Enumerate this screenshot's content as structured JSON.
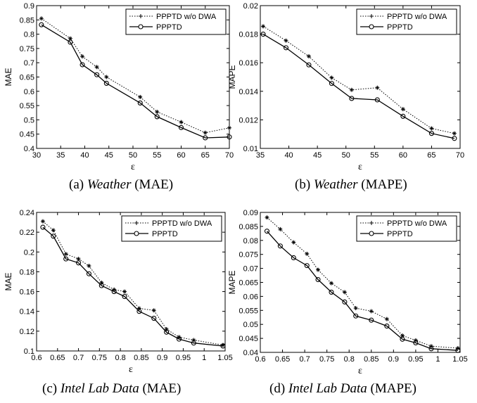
{
  "captions": [
    {
      "tag": "(a)",
      "dataset": "Weather",
      "metric": "(MAE)"
    },
    {
      "tag": "(b)",
      "dataset": "Weather",
      "metric": "(MAPE)"
    },
    {
      "tag": "(c)",
      "dataset": "Intel Lab Data",
      "metric": "(MAE)"
    },
    {
      "tag": "(d)",
      "dataset": "Intel Lab Data",
      "metric": "(MAPE)"
    }
  ],
  "chart_data": [
    {
      "type": "line",
      "xlabel": "ε",
      "ylabel": "MAE",
      "xlim": [
        30,
        70
      ],
      "ylim": [
        0.4,
        0.9
      ],
      "xticks": [
        30,
        35,
        40,
        45,
        50,
        55,
        60,
        65,
        70
      ],
      "yticks": [
        0.4,
        0.45,
        0.5,
        0.55,
        0.6,
        0.65,
        0.7,
        0.75,
        0.8,
        0.85,
        0.9
      ],
      "legend_position": "top-right",
      "series": [
        {
          "name": "PPPTD w/o DWA",
          "style": "dotted",
          "marker": "star",
          "color": "#000000",
          "x": [
            31,
            37,
            39.5,
            42.5,
            44.5,
            51.5,
            55,
            60,
            65,
            70
          ],
          "y": [
            0.855,
            0.785,
            0.722,
            0.685,
            0.65,
            0.58,
            0.528,
            0.492,
            0.455,
            0.472
          ]
        },
        {
          "name": "PPPTD",
          "style": "solid",
          "marker": "circle",
          "color": "#000000",
          "x": [
            31,
            37,
            39.5,
            42.5,
            44.5,
            51.5,
            55,
            60,
            65,
            70
          ],
          "y": [
            0.833,
            0.772,
            0.693,
            0.658,
            0.628,
            0.559,
            0.511,
            0.473,
            0.437,
            0.44
          ]
        }
      ]
    },
    {
      "type": "line",
      "xlabel": "ε",
      "ylabel": "MAPE",
      "xlim": [
        35,
        70
      ],
      "ylim": [
        0.01,
        0.02
      ],
      "xticks": [
        35,
        40,
        45,
        50,
        55,
        60,
        65,
        70
      ],
      "yticks": [
        0.01,
        0.012,
        0.014,
        0.016,
        0.018,
        0.02
      ],
      "legend_position": "top-right",
      "series": [
        {
          "name": "PPPTD w/o DWA",
          "style": "dotted",
          "marker": "star",
          "color": "#000000",
          "x": [
            35.5,
            39.5,
            43.5,
            47.5,
            51,
            55.5,
            60,
            65,
            69
          ],
          "y": [
            0.01855,
            0.01755,
            0.01645,
            0.01495,
            0.0141,
            0.01425,
            0.01275,
            0.0114,
            0.01105
          ]
        },
        {
          "name": "PPPTD",
          "style": "solid",
          "marker": "circle",
          "color": "#000000",
          "x": [
            35.5,
            39.5,
            43.5,
            47.5,
            51,
            55.5,
            60,
            65,
            69
          ],
          "y": [
            0.018,
            0.01705,
            0.01585,
            0.01455,
            0.0135,
            0.0134,
            0.01225,
            0.01105,
            0.0107
          ]
        }
      ]
    },
    {
      "type": "line",
      "xlabel": "ε",
      "ylabel": "MAE",
      "xlim": [
        0.6,
        1.05
      ],
      "ylim": [
        0.1,
        0.24
      ],
      "xticks": [
        0.6,
        0.65,
        0.7,
        0.75,
        0.8,
        0.85,
        0.9,
        0.95,
        1,
        1.05
      ],
      "yticks": [
        0.1,
        0.12,
        0.14,
        0.16,
        0.18,
        0.2,
        0.22,
        0.24
      ],
      "legend_position": "top-right",
      "series": [
        {
          "name": "PPPTD w/o DWA",
          "style": "dotted",
          "marker": "star",
          "color": "#000000",
          "x": [
            0.615,
            0.64,
            0.67,
            0.7,
            0.725,
            0.755,
            0.785,
            0.81,
            0.845,
            0.88,
            0.91,
            0.94,
            0.975,
            1.045
          ],
          "y": [
            0.231,
            0.222,
            0.198,
            0.193,
            0.186,
            0.169,
            0.162,
            0.16,
            0.143,
            0.141,
            0.122,
            0.114,
            0.111,
            0.106
          ]
        },
        {
          "name": "PPPTD",
          "style": "solid",
          "marker": "circle",
          "color": "#000000",
          "x": [
            0.615,
            0.64,
            0.67,
            0.7,
            0.725,
            0.755,
            0.785,
            0.81,
            0.845,
            0.88,
            0.91,
            0.94,
            0.975,
            1.045
          ],
          "y": [
            0.225,
            0.216,
            0.193,
            0.189,
            0.178,
            0.166,
            0.16,
            0.155,
            0.14,
            0.133,
            0.119,
            0.112,
            0.108,
            0.105
          ]
        }
      ]
    },
    {
      "type": "line",
      "xlabel": "ε",
      "ylabel": "MAPE",
      "xlim": [
        0.6,
        1.05
      ],
      "ylim": [
        0.04,
        0.09
      ],
      "xticks": [
        0.6,
        0.65,
        0.7,
        0.75,
        0.8,
        0.85,
        0.9,
        0.95,
        1,
        1.05
      ],
      "yticks": [
        0.04,
        0.045,
        0.05,
        0.055,
        0.06,
        0.065,
        0.07,
        0.075,
        0.08,
        0.085,
        0.09
      ],
      "legend_position": "top-right",
      "series": [
        {
          "name": "PPPTD w/o DWA",
          "style": "dotted",
          "marker": "star",
          "color": "#000000",
          "x": [
            0.615,
            0.645,
            0.675,
            0.705,
            0.73,
            0.76,
            0.79,
            0.815,
            0.85,
            0.885,
            0.92,
            0.95,
            0.985,
            1.045
          ],
          "y": [
            0.0882,
            0.084,
            0.0793,
            0.0752,
            0.0695,
            0.0647,
            0.0615,
            0.0558,
            0.0547,
            0.0519,
            0.046,
            0.0443,
            0.0422,
            0.0415
          ]
        },
        {
          "name": "PPPTD",
          "style": "solid",
          "marker": "circle",
          "color": "#000000",
          "x": [
            0.615,
            0.645,
            0.675,
            0.705,
            0.73,
            0.76,
            0.79,
            0.815,
            0.85,
            0.885,
            0.92,
            0.95,
            0.985,
            1.045
          ],
          "y": [
            0.0833,
            0.078,
            0.0738,
            0.071,
            0.066,
            0.0615,
            0.058,
            0.053,
            0.0515,
            0.0494,
            0.0447,
            0.0434,
            0.0413,
            0.0407
          ]
        }
      ]
    }
  ]
}
